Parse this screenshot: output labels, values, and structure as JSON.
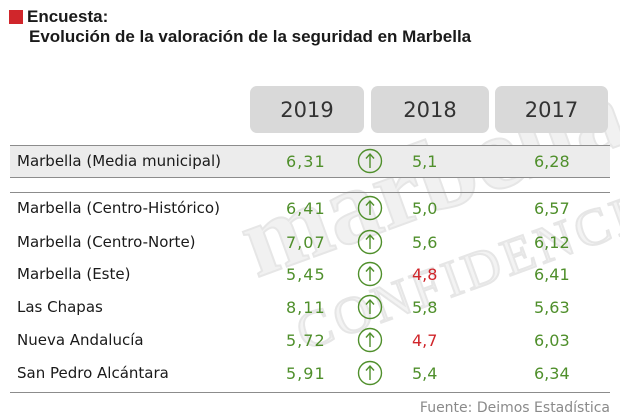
{
  "header": {
    "kicker": "Encuesta:",
    "title": "Evolución de la valoración de la seguridad en Marbella",
    "accent_color": "#d0262b"
  },
  "watermark": {
    "line1": "marbella",
    "line2": "CONFIDENCIAL"
  },
  "chart_data": {
    "type": "table",
    "title": "Evolución de la valoración de la seguridad en Marbella",
    "columns": [
      "2019",
      "2018",
      "2017"
    ],
    "rows": [
      {
        "name": "Marbella (Media municipal)",
        "v2019": "6,31",
        "trend": "up",
        "v2018": "5,1",
        "v2018_color": "green",
        "v2017": "6,28"
      },
      {
        "name": "Marbella (Centro-Histórico)",
        "v2019": "6,41",
        "trend": "up",
        "v2018": "5,0",
        "v2018_color": "green",
        "v2017": "6,57"
      },
      {
        "name": "Marbella (Centro-Norte)",
        "v2019": "7,07",
        "trend": "up",
        "v2018": "5,6",
        "v2018_color": "green",
        "v2017": "6,12"
      },
      {
        "name": "Marbella (Este)",
        "v2019": "5,45",
        "trend": "up",
        "v2018": "4,8",
        "v2018_color": "red",
        "v2017": "6,41"
      },
      {
        "name": "Las Chapas",
        "v2019": "8,11",
        "trend": "up",
        "v2018": "5,8",
        "v2018_color": "green",
        "v2017": "5,63"
      },
      {
        "name": "Nueva Andalucía",
        "v2019": "5,72",
        "trend": "up",
        "v2018": "4,7",
        "v2018_color": "red",
        "v2017": "6,03"
      },
      {
        "name": "San Pedro Alcántara",
        "v2019": "5,91",
        "trend": "up",
        "v2018": "5,4",
        "v2018_color": "green",
        "v2017": "6,34"
      }
    ],
    "colors": {
      "green": "#4f8f2b",
      "red": "#d0262b"
    }
  },
  "source": "Fuente: Deimos Estadística"
}
